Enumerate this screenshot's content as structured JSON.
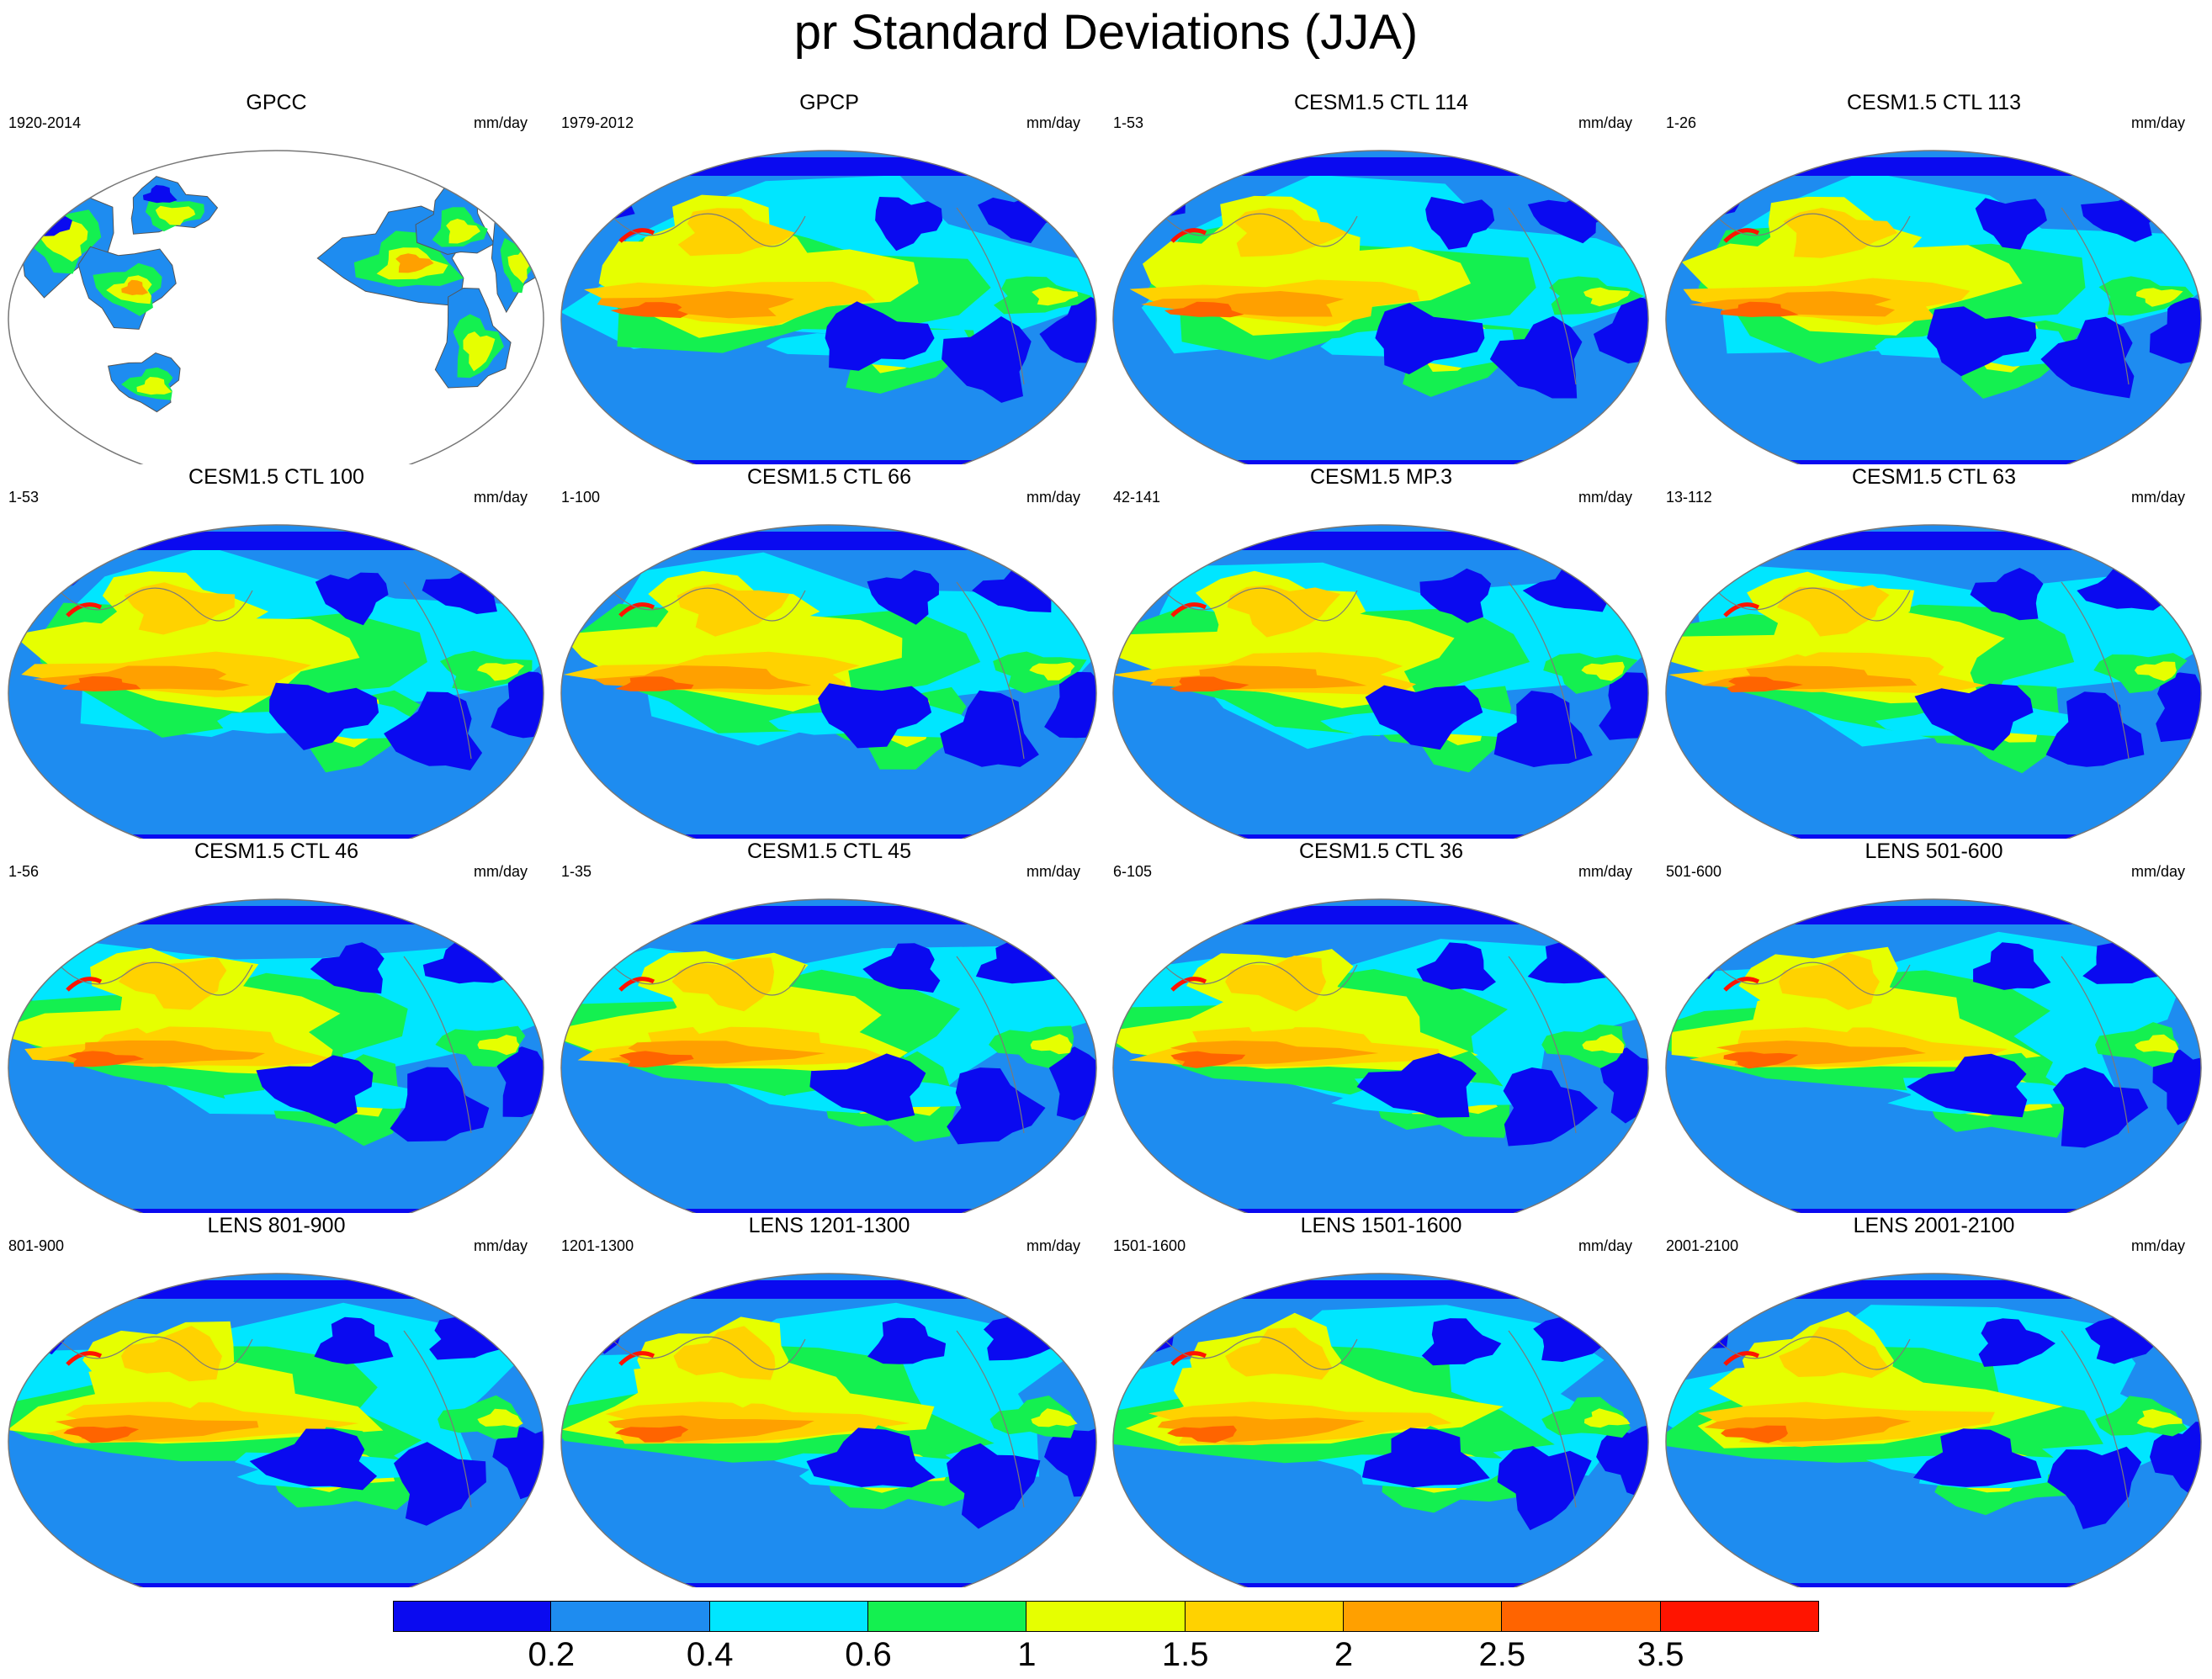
{
  "title": "pr Standard Deviations (JJA)",
  "panels": [
    {
      "title": "GPCC",
      "left_label": "1920-2014",
      "units": "mm/day",
      "land_only": true
    },
    {
      "title": "GPCP",
      "left_label": "1979-2012",
      "units": "mm/day"
    },
    {
      "title": "CESM1.5 CTL 114",
      "left_label": "1-53",
      "units": "mm/day"
    },
    {
      "title": "CESM1.5 CTL 113",
      "left_label": "1-26",
      "units": "mm/day"
    },
    {
      "title": "CESM1.5 CTL 100",
      "left_label": "1-53",
      "units": "mm/day"
    },
    {
      "title": "CESM1.5 CTL 66",
      "left_label": "1-100",
      "units": "mm/day"
    },
    {
      "title": "CESM1.5 MP.3",
      "left_label": "42-141",
      "units": "mm/day"
    },
    {
      "title": "CESM1.5 CTL 63",
      "left_label": "13-112",
      "units": "mm/day"
    },
    {
      "title": "CESM1.5 CTL 46",
      "left_label": "1-56",
      "units": "mm/day"
    },
    {
      "title": "CESM1.5 CTL 45",
      "left_label": "1-35",
      "units": "mm/day"
    },
    {
      "title": "CESM1.5 CTL 36",
      "left_label": "6-105",
      "units": "mm/day"
    },
    {
      "title": "LENS 501-600",
      "left_label": "501-600",
      "units": "mm/day"
    },
    {
      "title": "LENS 801-900",
      "left_label": "801-900",
      "units": "mm/day"
    },
    {
      "title": "LENS 1201-1300",
      "left_label": "1201-1300",
      "units": "mm/day"
    },
    {
      "title": "LENS 1501-1600",
      "left_label": "1501-1600",
      "units": "mm/day"
    },
    {
      "title": "LENS 2001-2100",
      "left_label": "2001-2100",
      "units": "mm/day"
    }
  ],
  "colorbar": {
    "labels": [
      "0.2",
      "0.4",
      "0.6",
      "1",
      "1.5",
      "2",
      "2.5",
      "3.5"
    ],
    "colors": [
      "#0a0af0",
      "#1e8cf0",
      "#00e6ff",
      "#14f050",
      "#e6ff00",
      "#ffd200",
      "#ffa000",
      "#ff6400",
      "#ff1400"
    ]
  }
}
